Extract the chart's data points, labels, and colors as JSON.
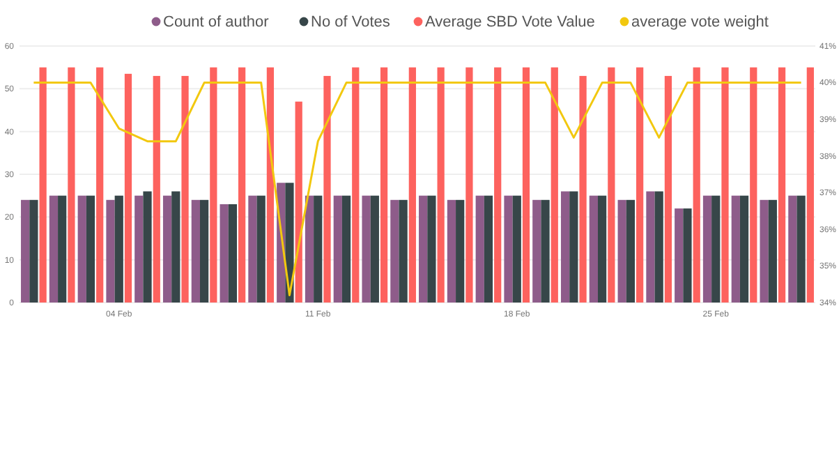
{
  "chart_data": {
    "type": "bar",
    "categories": [
      null,
      null,
      null,
      "04 Feb",
      null,
      null,
      null,
      null,
      null,
      null,
      "11 Feb",
      null,
      null,
      null,
      null,
      null,
      null,
      "18 Feb",
      null,
      null,
      null,
      null,
      null,
      null,
      "25 Feb",
      null,
      null,
      null
    ],
    "series": [
      {
        "name": "Count of author",
        "color": "#8e5c8a",
        "values": [
          24,
          25,
          25,
          24,
          25,
          25,
          24,
          23,
          25,
          28,
          25,
          25,
          25,
          24,
          25,
          24,
          25,
          25,
          24,
          26,
          25,
          24,
          26,
          22,
          25,
          25,
          24,
          25
        ]
      },
      {
        "name": "No of Votes",
        "color": "#374649",
        "values": [
          24,
          25,
          25,
          25,
          26,
          26,
          24,
          23,
          25,
          28,
          25,
          25,
          25,
          24,
          25,
          24,
          25,
          25,
          24,
          26,
          25,
          24,
          26,
          22,
          25,
          25,
          24,
          25
        ]
      },
      {
        "name": "Average SBD Vote Value",
        "color": "#fd625e",
        "values": [
          55,
          55,
          55,
          53.5,
          53,
          53,
          55,
          55,
          55,
          47,
          53,
          55,
          55,
          55,
          55,
          55,
          55,
          55,
          55,
          53,
          55,
          55,
          53,
          55,
          55,
          55,
          55,
          55
        ]
      },
      {
        "name": "average vote weight",
        "type": "line",
        "axis": "y2",
        "color": "#f2c80f",
        "marker": "none",
        "values": [
          40,
          40,
          40,
          38.75,
          38.4,
          38.4,
          40,
          40,
          40,
          34.2,
          38.4,
          40,
          40,
          40,
          40,
          40,
          40,
          40,
          40,
          38.5,
          40,
          40,
          38.5,
          40,
          40,
          40,
          40,
          40
        ]
      }
    ],
    "ylim": [
      0,
      60
    ],
    "yticks": [
      0,
      10,
      20,
      30,
      40,
      50,
      60
    ],
    "y2lim": [
      34,
      41
    ],
    "y2ticks": [
      {
        "value": 34,
        "label": "34%"
      },
      {
        "value": 35,
        "label": "35%"
      },
      {
        "value": 36,
        "label": "36%"
      },
      {
        "value": 37,
        "label": "37%"
      },
      {
        "value": 38,
        "label": "38%"
      },
      {
        "value": 39,
        "label": "39%"
      },
      {
        "value": 40,
        "label": "40%"
      },
      {
        "value": 41,
        "label": "41%"
      }
    ],
    "grid": "y",
    "legend": "top"
  }
}
